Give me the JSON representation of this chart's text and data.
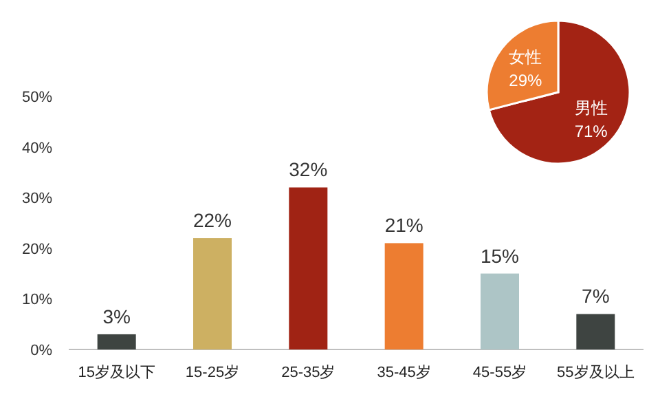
{
  "chart_data": [
    {
      "type": "bar",
      "categories": [
        "15岁及以下",
        "15-25岁",
        "25-35岁",
        "35-45岁",
        "45-55岁",
        "55岁及以上"
      ],
      "values": [
        3,
        22,
        32,
        21,
        15,
        7
      ],
      "colors": [
        "#3e4441",
        "#cdb062",
        "#a02314",
        "#ed7d31",
        "#adc5c6",
        "#3e4441"
      ],
      "value_labels": [
        "3%",
        "22%",
        "32%",
        "21%",
        "15%",
        "7%"
      ],
      "ylim": [
        0,
        50
      ],
      "yticks": [
        {
          "value": 0,
          "label": "0%"
        },
        {
          "value": 10,
          "label": "10%"
        },
        {
          "value": 20,
          "label": "20%"
        },
        {
          "value": 30,
          "label": "30%"
        },
        {
          "value": 40,
          "label": "40%"
        },
        {
          "value": 50,
          "label": "50%"
        }
      ],
      "grid": false
    },
    {
      "type": "pie",
      "categories": [
        "男性",
        "女性"
      ],
      "values": [
        71,
        29
      ],
      "colors": [
        "#a32314",
        "#ed7d31"
      ],
      "value_labels": [
        "71%",
        "29%"
      ]
    }
  ]
}
